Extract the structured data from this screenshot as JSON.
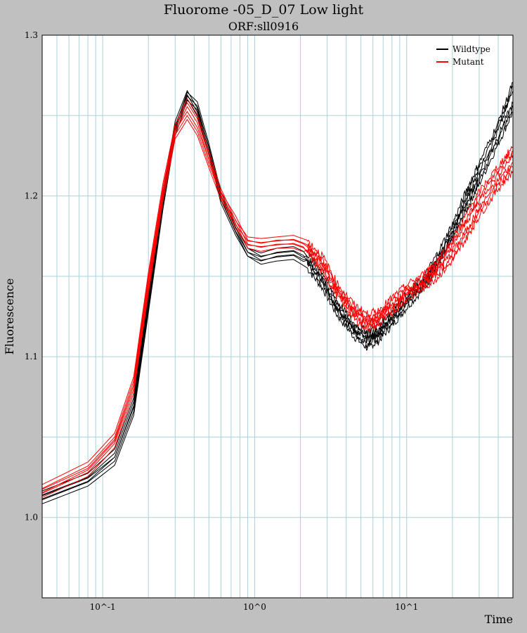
{
  "chart_data": {
    "type": "line",
    "title": "Fluorome -05_D_07 Low light",
    "subtitle": "ORF:sll0916",
    "xlabel": "Time",
    "ylabel": "Fluorescence",
    "xscale": "log",
    "xlim": [
      0.04,
      50
    ],
    "ylim": [
      0.95,
      1.3
    ],
    "yticks": [
      1.0,
      1.1,
      1.2,
      1.3
    ],
    "xticks": [
      {
        "value": 0.1,
        "label": "10^-1"
      },
      {
        "value": 1,
        "label": "10^0"
      },
      {
        "value": 10,
        "label": "10^1"
      }
    ],
    "grid": true,
    "legend_position": "top-right",
    "colors": {
      "Wildtype": "#000000",
      "Mutant": "#ff0000"
    },
    "legend": [
      "Wildtype",
      "Mutant"
    ],
    "series": [
      {
        "name": "Wildtype",
        "x": [
          0.04,
          0.08,
          0.12,
          0.16,
          0.2,
          0.25,
          0.3,
          0.36,
          0.42,
          0.5,
          0.6,
          0.75,
          0.9,
          1.1,
          1.4,
          1.8,
          2.2,
          2.8,
          3.5,
          4.5,
          5.5,
          6.5,
          8,
          10,
          13,
          16,
          20,
          25,
          30,
          40,
          50
        ],
        "y": [
          1.011,
          1.022,
          1.035,
          1.066,
          1.13,
          1.195,
          1.24,
          1.262,
          1.256,
          1.23,
          1.2,
          1.18,
          1.165,
          1.16,
          1.162,
          1.163,
          1.158,
          1.145,
          1.128,
          1.115,
          1.108,
          1.112,
          1.122,
          1.133,
          1.145,
          1.158,
          1.175,
          1.195,
          1.21,
          1.235,
          1.255
        ]
      },
      {
        "name": "Wildtype",
        "x": [
          0.04,
          0.08,
          0.12,
          0.16,
          0.2,
          0.25,
          0.3,
          0.36,
          0.42,
          0.5,
          0.6,
          0.75,
          0.9,
          1.1,
          1.4,
          1.8,
          2.2,
          2.8,
          3.5,
          4.5,
          5.5,
          6.5,
          8,
          10,
          13,
          16,
          20,
          25,
          30,
          40,
          50
        ],
        "y": [
          1.014,
          1.025,
          1.04,
          1.072,
          1.138,
          1.2,
          1.244,
          1.263,
          1.252,
          1.228,
          1.198,
          1.178,
          1.165,
          1.162,
          1.165,
          1.166,
          1.162,
          1.15,
          1.132,
          1.118,
          1.113,
          1.117,
          1.126,
          1.136,
          1.147,
          1.162,
          1.18,
          1.202,
          1.218,
          1.243,
          1.268
        ]
      },
      {
        "name": "Mutant",
        "x": [
          0.04,
          0.08,
          0.12,
          0.16,
          0.2,
          0.25,
          0.3,
          0.36,
          0.42,
          0.5,
          0.6,
          0.75,
          0.9,
          1.1,
          1.4,
          1.8,
          2.2,
          2.8,
          3.5,
          4.5,
          5.5,
          6.5,
          8,
          10,
          13,
          16,
          20,
          25,
          30,
          40,
          50
        ],
        "y": [
          1.015,
          1.028,
          1.046,
          1.08,
          1.142,
          1.2,
          1.238,
          1.25,
          1.24,
          1.22,
          1.2,
          1.185,
          1.17,
          1.168,
          1.17,
          1.17,
          1.167,
          1.155,
          1.14,
          1.126,
          1.12,
          1.122,
          1.13,
          1.138,
          1.145,
          1.152,
          1.162,
          1.177,
          1.19,
          1.207,
          1.218
        ]
      },
      {
        "name": "Mutant",
        "x": [
          0.04,
          0.08,
          0.12,
          0.16,
          0.2,
          0.25,
          0.3,
          0.36,
          0.42,
          0.5,
          0.6,
          0.75,
          0.9,
          1.1,
          1.4,
          1.8,
          2.2,
          2.8,
          3.5,
          4.5,
          5.5,
          6.5,
          8,
          10,
          13,
          16,
          20,
          25,
          30,
          40,
          50
        ],
        "y": [
          1.018,
          1.032,
          1.05,
          1.085,
          1.15,
          1.206,
          1.242,
          1.258,
          1.248,
          1.225,
          1.202,
          1.182,
          1.172,
          1.171,
          1.172,
          1.173,
          1.17,
          1.16,
          1.143,
          1.13,
          1.124,
          1.126,
          1.134,
          1.142,
          1.149,
          1.158,
          1.17,
          1.187,
          1.2,
          1.216,
          1.228
        ]
      }
    ]
  }
}
